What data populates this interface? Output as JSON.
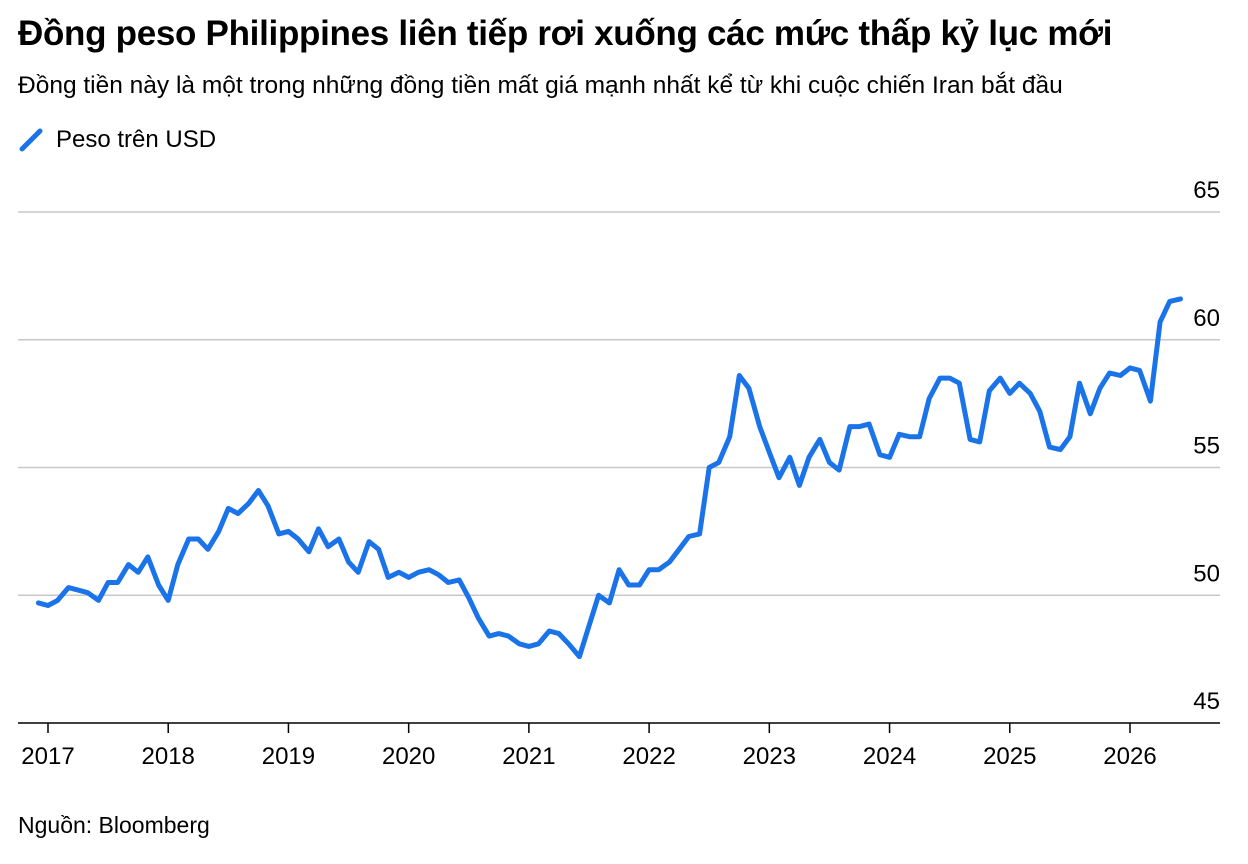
{
  "header": {
    "title": "Đồng peso Philippines liên tiếp rơi xuống các mức thấp kỷ lục mới",
    "subtitle": "Đồng tiền này là một trong những đồng tiền mất giá mạnh nhất kể từ khi cuộc chiến Iran bắt đầu"
  },
  "footer": {
    "source": "Nguồn: Bloomberg"
  },
  "colors": {
    "line": "#1a73e8",
    "grid": "#c8c8c8",
    "axis": "#000000"
  },
  "chart_data": {
    "type": "line",
    "title": "Đồng peso Philippines liên tiếp rơi xuống các mức thấp kỷ lục mới",
    "subtitle": "Đồng tiền này là một trong những đồng tiền mất giá mạnh nhất kể từ khi cuộc chiến Iran bắt đầu",
    "ylim": [
      45,
      65
    ],
    "xlim": [
      2016.92,
      2026.5
    ],
    "y_ticks": [
      45,
      50,
      55,
      60,
      65
    ],
    "x_ticks": [
      2017,
      2018,
      2019,
      2020,
      2021,
      2022,
      2023,
      2024,
      2025,
      2026
    ],
    "x_tick_labels": [
      "2017",
      "2018",
      "2019",
      "2020",
      "2021",
      "2022",
      "2023",
      "2024",
      "2025",
      "2026"
    ],
    "grid": true,
    "legend_position": "top-left",
    "series": [
      {
        "name": "Peso trên USD",
        "x": [
          2016.92,
          2017.0,
          2017.08,
          2017.17,
          2017.25,
          2017.33,
          2017.42,
          2017.5,
          2017.58,
          2017.67,
          2017.75,
          2017.83,
          2017.92,
          2018.0,
          2018.08,
          2018.17,
          2018.25,
          2018.33,
          2018.42,
          2018.5,
          2018.58,
          2018.67,
          2018.75,
          2018.83,
          2018.92,
          2019.0,
          2019.08,
          2019.17,
          2019.25,
          2019.33,
          2019.42,
          2019.5,
          2019.58,
          2019.67,
          2019.75,
          2019.83,
          2019.92,
          2020.0,
          2020.08,
          2020.17,
          2020.25,
          2020.33,
          2020.42,
          2020.5,
          2020.58,
          2020.67,
          2020.75,
          2020.83,
          2020.92,
          2021.0,
          2021.08,
          2021.17,
          2021.25,
          2021.33,
          2021.42,
          2021.5,
          2021.58,
          2021.67,
          2021.75,
          2021.83,
          2021.92,
          2022.0,
          2022.08,
          2022.17,
          2022.25,
          2022.33,
          2022.42,
          2022.5,
          2022.58,
          2022.67,
          2022.75,
          2022.83,
          2022.92,
          2023.0,
          2023.08,
          2023.17,
          2023.25,
          2023.33,
          2023.42,
          2023.5,
          2023.58,
          2023.67,
          2023.75,
          2023.83,
          2023.92,
          2024.0,
          2024.08,
          2024.17,
          2024.25,
          2024.33,
          2024.42,
          2024.5,
          2024.58,
          2024.67,
          2024.75,
          2024.83,
          2024.92,
          2025.0,
          2025.08,
          2025.17,
          2025.25,
          2025.33,
          2025.42,
          2025.5,
          2025.58,
          2025.67,
          2025.75,
          2025.83,
          2025.92,
          2026.0,
          2026.08,
          2026.17,
          2026.25,
          2026.33,
          2026.42
        ],
        "values": [
          49.7,
          49.6,
          49.8,
          50.3,
          50.2,
          50.1,
          49.8,
          50.5,
          50.5,
          51.2,
          50.9,
          51.5,
          50.4,
          49.8,
          51.2,
          52.2,
          52.2,
          51.8,
          52.5,
          53.4,
          53.2,
          53.6,
          54.1,
          53.5,
          52.4,
          52.5,
          52.2,
          51.7,
          52.6,
          51.9,
          52.2,
          51.3,
          50.9,
          52.1,
          51.8,
          50.7,
          50.9,
          50.7,
          50.9,
          51.0,
          50.8,
          50.5,
          50.6,
          49.9,
          49.1,
          48.4,
          48.5,
          48.4,
          48.1,
          48.0,
          48.1,
          48.6,
          48.5,
          48.1,
          47.6,
          48.8,
          50.0,
          49.7,
          51.0,
          50.4,
          50.4,
          51.0,
          51.0,
          51.3,
          51.8,
          52.3,
          52.4,
          55.0,
          55.2,
          56.2,
          58.6,
          58.1,
          56.6,
          55.6,
          54.6,
          55.4,
          54.3,
          55.4,
          56.1,
          55.2,
          54.9,
          56.6,
          56.6,
          56.7,
          55.5,
          55.4,
          56.3,
          56.2,
          56.2,
          57.7,
          58.5,
          58.5,
          58.3,
          56.1,
          56.0,
          58.0,
          58.5,
          57.9,
          58.3,
          57.9,
          57.2,
          55.8,
          55.7,
          56.2,
          58.3,
          57.1,
          58.1,
          58.7,
          58.6,
          58.9,
          58.8,
          57.6,
          60.7,
          61.5,
          61.6
        ]
      }
    ],
    "source": "Nguồn: Bloomberg"
  }
}
